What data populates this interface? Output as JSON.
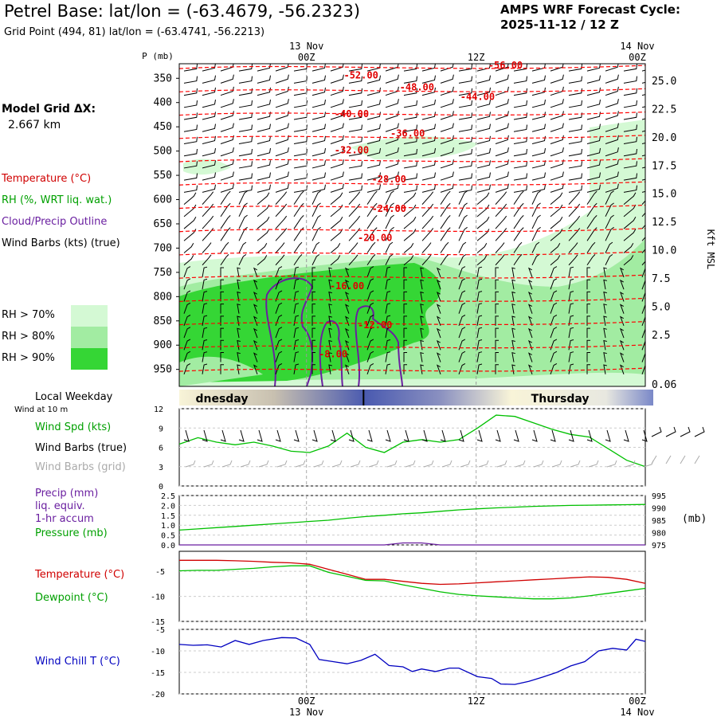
{
  "header": {
    "title": "Petrel Base:  lat/lon = (-63.4679, -56.2323)",
    "subtitle": "Grid Point (494, 81) lat/lon = (-63.4741, -56.2213)",
    "cycle_line1": "AMPS WRF Forecast Cycle:",
    "cycle_line2": "2025-11-12 / 12  Z"
  },
  "model_grid": {
    "line1": "Model Grid ΔX:",
    "line2": "2.667 km"
  },
  "legend": {
    "temperature": "Temperature (°C)",
    "rh": "RH (%, WRT liq. wat.)",
    "cloud": "Cloud/Precip Outline",
    "wind": "Wind Barbs (kts) (true)",
    "rh70": "RH > 70%",
    "rh80": "RH > 80%",
    "rh90": "RH > 90%"
  },
  "colors": {
    "rh70": "#d4f9d4",
    "rh80": "#a2eca2",
    "rh90": "#35d635",
    "temp": "#ff0000",
    "cloud": "#6a1fa0",
    "green_line": "#00c000",
    "red_line": "#d00000",
    "blue_line": "#0000c0"
  },
  "time_axis": {
    "top_labels": [
      {
        "date": "13 Nov",
        "time": "00Z",
        "pos": 0.273
      },
      {
        "date": "",
        "time": "12Z",
        "pos": 0.637
      },
      {
        "date": "14 Nov",
        "time": "00Z",
        "pos": 1.0
      }
    ],
    "weekday_label": "Local Weekday",
    "wind_at": "Wind at 10 m",
    "weekdays": [
      {
        "text": "dnesday",
        "pos": 0.035
      },
      {
        "text": "Thursday",
        "pos": 0.755
      }
    ],
    "day_boundary": 0.392
  },
  "chart_data": [
    {
      "type": "heatmap",
      "name": "cross-section",
      "ylabel": "P (mb)",
      "y2label": "Kft MSL",
      "pressure_ticks": [
        350,
        400,
        450,
        500,
        550,
        600,
        650,
        700,
        750,
        800,
        850,
        900,
        950
      ],
      "kft_ticks": [
        "25.0",
        "22.5",
        "20.0",
        "17.5",
        "15.0",
        "12.5",
        "10.0",
        "7.5",
        "5.0",
        "2.5",
        "0.06"
      ],
      "temperature_labels": [
        {
          "text": "-56.00",
          "t": 0.7,
          "p": 330
        },
        {
          "text": "-52.00",
          "t": 0.39,
          "p": 350
        },
        {
          "text": "-48.00",
          "t": 0.51,
          "p": 375
        },
        {
          "text": "-44.00",
          "t": 0.64,
          "p": 395
        },
        {
          "text": "-40.00",
          "t": 0.37,
          "p": 430
        },
        {
          "text": "-36.00",
          "t": 0.49,
          "p": 470
        },
        {
          "text": "-32.00",
          "t": 0.37,
          "p": 505
        },
        {
          "text": "-28.00",
          "t": 0.45,
          "p": 565
        },
        {
          "text": "-24.00",
          "t": 0.45,
          "p": 625
        },
        {
          "text": "-20.00",
          "t": 0.42,
          "p": 685
        },
        {
          "text": "-16.00",
          "t": 0.36,
          "p": 785
        },
        {
          "text": "-12.00",
          "t": 0.42,
          "p": 865
        },
        {
          "text": "-8.00",
          "t": 0.33,
          "p": 925
        }
      ]
    },
    {
      "type": "line",
      "name": "wind",
      "series_name": "Wind Spd (kts)",
      "barbs_true": "Wind Barbs (true)",
      "barbs_grid": "Wind Barbs (grid)",
      "ylim": [
        0,
        12
      ],
      "yticks": [
        "0",
        "3",
        "6",
        "9",
        "12"
      ],
      "x": [
        0,
        0.04,
        0.08,
        0.12,
        0.16,
        0.2,
        0.24,
        0.28,
        0.32,
        0.36,
        0.4,
        0.44,
        0.48,
        0.52,
        0.56,
        0.6,
        0.64,
        0.68,
        0.72,
        0.76,
        0.8,
        0.84,
        0.88,
        0.92,
        0.96,
        1.0
      ],
      "values": [
        6.5,
        7.5,
        6.8,
        6.4,
        6.8,
        6.2,
        5.4,
        5.2,
        6.2,
        8.2,
        6.0,
        5.2,
        6.8,
        7.2,
        6.8,
        7.2,
        9.0,
        11.0,
        10.8,
        9.8,
        8.8,
        8.0,
        7.6,
        5.8,
        4.0,
        3.0
      ]
    },
    {
      "type": "line",
      "name": "precip-pressure",
      "series": [
        {
          "name": "Precip (mm)",
          "values": [
            0,
            0,
            0,
            0,
            0,
            0,
            0,
            0,
            0,
            0,
            0,
            0,
            0.1,
            0.1,
            0,
            0,
            0,
            0,
            0,
            0,
            0,
            0,
            0,
            0,
            0,
            0
          ]
        },
        {
          "name": "Pressure (mb)",
          "values": [
            981,
            981.5,
            982,
            982.5,
            983,
            983.5,
            984,
            984.5,
            985,
            985.8,
            986.5,
            987,
            987.6,
            988,
            988.6,
            989.2,
            989.6,
            990,
            990.3,
            990.6,
            990.8,
            991,
            991.1,
            991.2,
            991.3,
            991.4
          ]
        }
      ],
      "precip_label_lines": [
        "Precip (mm)",
        "liq. equiv.",
        "1-hr accum"
      ],
      "pressure_label": "Pressure (mb)",
      "y1ticks": [
        "2.5",
        "2.0",
        "1.5",
        "1.0",
        "0.5",
        "0.0"
      ],
      "y2ticks": [
        "995",
        "990",
        "985",
        "980",
        "975"
      ],
      "y2label": "(mb)",
      "ylim": [
        0,
        2.5
      ],
      "y2lim": [
        975,
        995
      ]
    },
    {
      "type": "line",
      "name": "temperature",
      "series": [
        {
          "name": "Temperature (°C)",
          "values": [
            -2.8,
            -2.8,
            -2.8,
            -2.9,
            -3.0,
            -3.2,
            -3.3,
            -3.6,
            -4.6,
            -5.6,
            -6.6,
            -6.6,
            -7.0,
            -7.4,
            -7.6,
            -7.5,
            -7.3,
            -7.1,
            -6.9,
            -6.7,
            -6.5,
            -6.3,
            -6.1,
            -6.2,
            -6.6,
            -7.4
          ]
        },
        {
          "name": "Dewpoint (°C)",
          "values": [
            -4.9,
            -4.8,
            -4.8,
            -4.6,
            -4.4,
            -4.1,
            -3.9,
            -3.9,
            -5.2,
            -6.0,
            -6.8,
            -6.9,
            -7.7,
            -8.4,
            -9.1,
            -9.6,
            -9.9,
            -10.1,
            -10.3,
            -10.5,
            -10.5,
            -10.3,
            -9.9,
            -9.4,
            -8.9,
            -8.4
          ]
        }
      ],
      "yticks": [
        "-5",
        "-10",
        "-15"
      ],
      "ylim": [
        -15,
        -1
      ]
    },
    {
      "type": "line",
      "name": "wind-chill",
      "series": [
        {
          "name": "Wind Chill T (°C)",
          "x": [
            0,
            0.03,
            0.06,
            0.09,
            0.12,
            0.15,
            0.18,
            0.22,
            0.25,
            0.28,
            0.3,
            0.33,
            0.36,
            0.39,
            0.42,
            0.45,
            0.48,
            0.5,
            0.52,
            0.55,
            0.58,
            0.6,
            0.64,
            0.67,
            0.69,
            0.72,
            0.75,
            0.78,
            0.81,
            0.84,
            0.87,
            0.9,
            0.93,
            0.96,
            0.98,
            1.0
          ],
          "values": [
            -8.5,
            -8.7,
            -8.6,
            -9.1,
            -7.6,
            -8.5,
            -7.6,
            -6.9,
            -7.0,
            -8.5,
            -12.0,
            -12.5,
            -13.0,
            -12.2,
            -10.8,
            -13.4,
            -13.7,
            -14.8,
            -14.2,
            -14.8,
            -14.0,
            -14.0,
            -16.0,
            -16.4,
            -17.7,
            -17.8,
            -17.1,
            -16.1,
            -15.0,
            -13.5,
            -12.5,
            -10.0,
            -9.4,
            -9.8,
            -7.3,
            -7.8
          ]
        }
      ],
      "yticks": [
        "-5",
        "-10",
        "-15",
        "-20"
      ],
      "ylim": [
        -20,
        -5
      ]
    }
  ]
}
